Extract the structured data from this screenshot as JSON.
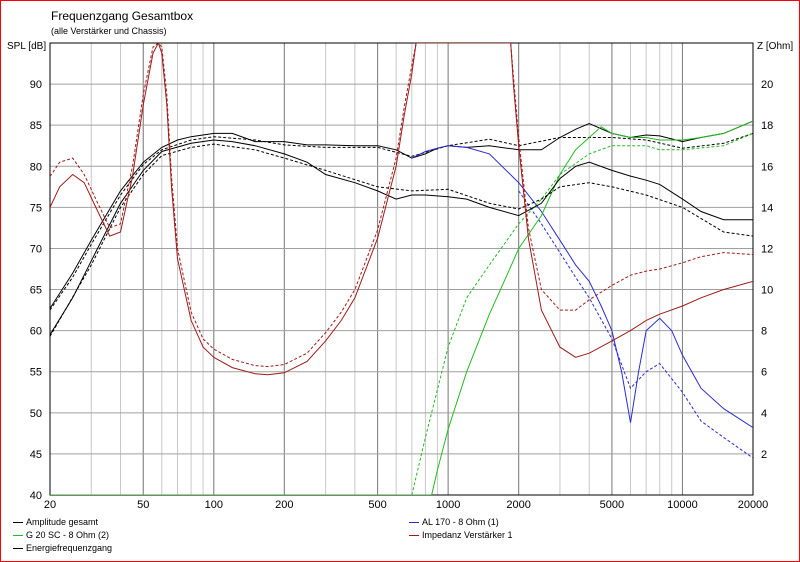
{
  "chart_data": {
    "type": "line",
    "title": "Frequenzgang Gesamtbox",
    "subtitle": "(alle Verstärker und Chassis)",
    "ylabel_left": "SPL [dB]",
    "ylabel_right": "Z [Ohm]",
    "x_scale": "log",
    "xlim": [
      20,
      20000
    ],
    "ylim_left": [
      40,
      95
    ],
    "ylim_right": [
      0,
      22
    ],
    "x_ticks": [
      20,
      50,
      100,
      200,
      500,
      1000,
      2000,
      5000,
      10000,
      20000
    ],
    "x_tick_labels": [
      "20",
      "50",
      "100",
      "200",
      "500",
      "1000",
      "2000",
      "5000",
      "10000",
      "20000"
    ],
    "y_ticks_left": [
      40,
      45,
      50,
      55,
      60,
      65,
      70,
      75,
      80,
      85,
      90
    ],
    "y_ticks_right": [
      2,
      4,
      6,
      8,
      10,
      12,
      14,
      16,
      18,
      20
    ],
    "grid": true,
    "legend_placement": "bottom",
    "series": [
      {
        "name": "Amplitude gesamt",
        "axis": "left",
        "color": "#000000",
        "x": [
          20,
          25,
          30,
          40,
          50,
          60,
          70,
          80,
          100,
          120,
          150,
          200,
          250,
          300,
          400,
          500,
          600,
          700,
          800,
          900,
          1000,
          1200,
          1500,
          2000,
          2500,
          3000,
          3500,
          4000,
          5000,
          6000,
          7000,
          8000,
          10000,
          12000,
          15000,
          20000
        ],
        "y": [
          62.7,
          67,
          71,
          77,
          80.5,
          82.3,
          83.2,
          83.6,
          84,
          84,
          83,
          83,
          82.6,
          82.6,
          82.5,
          82.5,
          82,
          81,
          81.5,
          82.2,
          82.5,
          82.3,
          82.5,
          82,
          82,
          83.5,
          84.5,
          85.2,
          84,
          83.5,
          83.8,
          83.7,
          83,
          83.5,
          84,
          85.5
        ]
      },
      {
        "name": "Amplitude gesamt (2)",
        "axis": "left",
        "color": "#000000",
        "dashed": true,
        "x": [
          20,
          25,
          30,
          40,
          50,
          60,
          80,
          100,
          150,
          200,
          300,
          500,
          700,
          1000,
          1500,
          2000,
          3000,
          5000,
          7000,
          10000,
          15000,
          20000
        ],
        "y": [
          62.5,
          66.5,
          70.5,
          76.5,
          80.2,
          82,
          83.2,
          83.6,
          83.2,
          82.6,
          82.3,
          82.3,
          81.2,
          82.5,
          83.3,
          82.5,
          83.5,
          83.5,
          83.2,
          82.2,
          82.8,
          84
        ]
      },
      {
        "name": "AL 170 - 8 Ohm (1)",
        "axis": "left",
        "color": "#2b2bd2",
        "x": [
          700,
          800,
          900,
          1000,
          1200,
          1500,
          2000,
          2500,
          3000,
          3500,
          4000,
          4500,
          5000,
          5500,
          6000,
          6500,
          7000,
          8000,
          9000,
          10000,
          12000,
          15000,
          20000
        ],
        "y": [
          81,
          81.8,
          82.2,
          82.5,
          82.3,
          81.5,
          78,
          74.5,
          71,
          68,
          66,
          63,
          60,
          55,
          48.8,
          55,
          60,
          61.5,
          60,
          57,
          53,
          50.5,
          48.2
        ]
      },
      {
        "name": "AL 170 - 8 Ohm (1) (2)",
        "axis": "left",
        "color": "#2b2bd2",
        "dashed": true,
        "x": [
          2000,
          2500,
          3000,
          3500,
          4000,
          5000,
          6000,
          7000,
          8000,
          10000,
          12000,
          15000,
          20000
        ],
        "y": [
          77,
          73,
          69.5,
          66.5,
          64,
          59,
          53,
          55,
          56,
          52.5,
          49,
          47,
          44.5
        ]
      },
      {
        "name": "G 20 SC - 8 Ohm (2)",
        "axis": "left",
        "color": "#22bb22",
        "x": [
          20,
          700,
          850,
          900,
          1000,
          1200,
          1500,
          1800,
          2000,
          2500,
          3000,
          3500,
          4000,
          4500,
          5000,
          6000,
          7000,
          8000,
          10000,
          12000,
          15000,
          20000
        ],
        "y": [
          40,
          40,
          40,
          43,
          48,
          55,
          62,
          67,
          70,
          74,
          79,
          82,
          83.5,
          84.8,
          84,
          83.5,
          83.5,
          83.2,
          83.2,
          83.5,
          84,
          85.5
        ]
      },
      {
        "name": "G 20 SC - 8 Ohm (2) (2)",
        "axis": "left",
        "color": "#22bb22",
        "dashed": true,
        "x": [
          700,
          800,
          1000,
          1200,
          1500,
          2000,
          2500,
          3000,
          4000,
          5000,
          6000,
          7000,
          8000,
          10000,
          15000,
          20000
        ],
        "y": [
          40,
          47,
          58,
          64,
          68,
          73,
          76,
          79,
          81.5,
          82.5,
          82.5,
          82.5,
          82,
          82,
          82.5,
          84
        ]
      },
      {
        "name": "Energiefrequenzgang",
        "axis": "left",
        "color": "#000000",
        "x": [
          20,
          25,
          30,
          40,
          50,
          60,
          80,
          100,
          120,
          150,
          200,
          250,
          300,
          400,
          500,
          600,
          700,
          800,
          1000,
          1200,
          1500,
          2000,
          2500,
          3000,
          3500,
          4000,
          5000,
          6000,
          7000,
          8000,
          10000,
          12000,
          15000,
          20000
        ],
        "y": [
          59.5,
          64,
          68.5,
          75.5,
          79.5,
          81.8,
          82.8,
          83.2,
          83,
          82.5,
          81.5,
          80.5,
          79,
          78,
          77,
          76,
          76.5,
          76.5,
          76.3,
          76,
          75,
          74,
          75.5,
          78.5,
          80,
          80.5,
          79.5,
          78.8,
          78.3,
          77.8,
          76,
          74.5,
          73.5,
          73.5
        ]
      },
      {
        "name": "Energiefrequenzgang (2)",
        "axis": "left",
        "color": "#000000",
        "dashed": true,
        "x": [
          20,
          30,
          40,
          50,
          60,
          80,
          100,
          150,
          200,
          300,
          500,
          700,
          1000,
          1500,
          2000,
          2500,
          3000,
          4000,
          5000,
          7000,
          10000,
          15000,
          20000
        ],
        "y": [
          59.3,
          68,
          75,
          79,
          81.3,
          82.3,
          82.7,
          82,
          81,
          79.5,
          77.5,
          77,
          77.2,
          75.5,
          74.8,
          76,
          77.5,
          78,
          77.5,
          76.5,
          75,
          72,
          71.5
        ]
      },
      {
        "name": "Impedanz Verstärker 1",
        "axis": "right",
        "color": "#a01a1a",
        "x": [
          20,
          22,
          25,
          28,
          32,
          36,
          40,
          45,
          50,
          55,
          58,
          60,
          63,
          66,
          70,
          80,
          90,
          100,
          120,
          150,
          170,
          200,
          250,
          300,
          350,
          400,
          500,
          600,
          650,
          700,
          730,
          760,
          800,
          1800,
          1850,
          1900,
          2000,
          2200,
          2500,
          3000,
          3500,
          4000,
          5000,
          6000,
          7000,
          8000,
          10000,
          12000,
          15000,
          20000
        ],
        "y": [
          14,
          15,
          15.6,
          15.2,
          13.8,
          12.6,
          12.8,
          15.5,
          19,
          21.5,
          22,
          21.5,
          19,
          15,
          11.5,
          8.5,
          7.2,
          6.7,
          6.2,
          5.9,
          5.85,
          5.95,
          6.5,
          7.5,
          8.5,
          9.6,
          12.5,
          16,
          18.5,
          20.5,
          22,
          22,
          22,
          22,
          22,
          20,
          17,
          12.5,
          9,
          7.2,
          6.7,
          6.9,
          7.5,
          8,
          8.5,
          8.8,
          9.2,
          9.6,
          10,
          10.4
        ]
      },
      {
        "name": "Impedanz Verstärker 1 (2)",
        "axis": "right",
        "color": "#a01a1a",
        "dashed": true,
        "x": [
          20,
          22,
          25,
          28,
          32,
          36,
          40,
          45,
          50,
          55,
          58,
          60,
          63,
          66,
          70,
          80,
          90,
          100,
          120,
          150,
          170,
          200,
          250,
          300,
          350,
          400,
          500,
          600,
          650,
          700,
          730,
          760,
          800,
          1800,
          1850,
          1900,
          2000,
          2200,
          2500,
          3000,
          3500,
          4000,
          5000,
          6000,
          7000,
          8000,
          10000,
          12000,
          15000,
          20000
        ],
        "y": [
          15.5,
          16.2,
          16.4,
          15.6,
          14.2,
          13,
          13.2,
          16,
          19.5,
          21.8,
          22,
          21.8,
          19.5,
          15.5,
          12,
          8.9,
          7.6,
          7.1,
          6.6,
          6.3,
          6.25,
          6.35,
          6.9,
          7.9,
          8.9,
          10,
          12.9,
          16.4,
          18.9,
          20.9,
          22,
          22,
          22,
          22,
          22,
          20.4,
          17.4,
          13,
          10,
          9,
          9,
          9.5,
          10.2,
          10.7,
          10.9,
          11,
          11.3,
          11.6,
          11.8,
          11.7
        ]
      }
    ]
  },
  "legend": {
    "items": [
      {
        "label": "Amplitude gesamt",
        "color": "#000000"
      },
      {
        "label": "G 20 SC - 8 Ohm (2)",
        "color": "#22bb22"
      },
      {
        "label": "Energiefrequenzgang",
        "color": "#000000"
      },
      {
        "label": "AL 170 - 8 Ohm (1)",
        "color": "#2b2bd2"
      },
      {
        "label": "Impedanz Verstärker 1",
        "color": "#a01a1a"
      }
    ]
  }
}
